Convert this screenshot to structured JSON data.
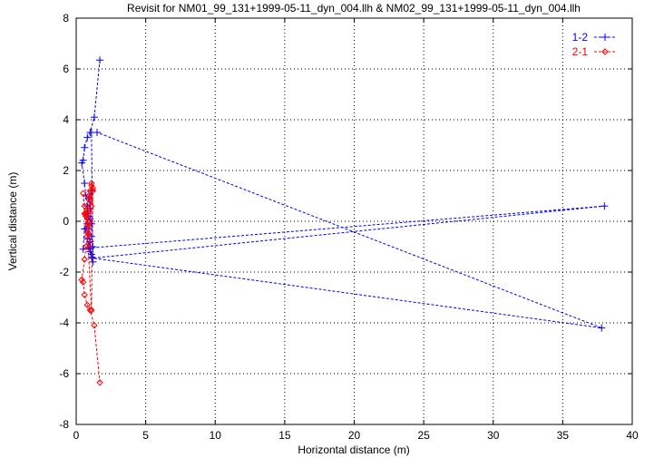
{
  "chart_data": {
    "type": "line",
    "title": "Revisit for NM01_99_131+1999-05-11_dyn_004.llh & NM02_99_131+1999-05-11_dyn_004.llh",
    "xlabel": "Horizontal distance (m)",
    "ylabel": "Vertical distance (m)",
    "xlim": [
      0,
      40
    ],
    "ylim": [
      -8,
      8
    ],
    "xticks": [
      "0",
      "5",
      "10",
      "15",
      "20",
      "25",
      "30",
      "35",
      "40"
    ],
    "yticks": [
      "-8",
      "-6",
      "-4",
      "-2",
      "0",
      "2",
      "4",
      "6",
      "8"
    ],
    "grid": true,
    "legend_position": "top-right",
    "series": [
      {
        "name": "1-2",
        "color": "#0000ff",
        "marker": "plus",
        "line_style": "dashed",
        "points": [
          [
            1.7,
            6.35
          ],
          [
            1.3,
            4.1
          ],
          [
            1.0,
            3.5
          ],
          [
            0.8,
            3.3
          ],
          [
            0.6,
            2.9
          ],
          [
            0.5,
            2.4
          ],
          [
            0.4,
            2.3
          ],
          [
            0.6,
            1.5
          ],
          [
            0.7,
            1.0
          ],
          [
            0.8,
            0.6
          ],
          [
            0.9,
            0.2
          ],
          [
            0.8,
            -0.1
          ],
          [
            0.7,
            -0.3
          ],
          [
            0.9,
            -0.5
          ],
          [
            1.0,
            -0.8
          ],
          [
            0.9,
            -1.0
          ],
          [
            1.0,
            -1.2
          ],
          [
            1.1,
            -1.4
          ],
          [
            1.2,
            -1.6
          ],
          [
            1.1,
            3.5
          ],
          [
            1.5,
            3.5
          ],
          [
            37.8,
            -4.2
          ],
          [
            1.2,
            -1.45
          ],
          [
            38.0,
            0.6
          ],
          [
            1.0,
            -1.05
          ],
          [
            0.5,
            -1.1
          ],
          [
            0.6,
            -0.3
          ],
          [
            0.8,
            0.3
          ],
          [
            0.9,
            0.9
          ],
          [
            1.1,
            1.2
          ],
          [
            1.0,
            0.5
          ],
          [
            1.1,
            -0.1
          ],
          [
            1.1,
            -0.6
          ],
          [
            1.2,
            -1.0
          ],
          [
            1.1,
            -1.3
          ],
          [
            1.0,
            -1.1
          ],
          [
            0.8,
            -0.7
          ],
          [
            0.9,
            -0.3
          ],
          [
            1.0,
            0.1
          ]
        ]
      },
      {
        "name": "2-1",
        "color": "#ff0000",
        "marker": "diamond",
        "line_style": "dashed",
        "points": [
          [
            1.7,
            -6.35
          ],
          [
            1.3,
            -4.1
          ],
          [
            1.0,
            -3.5
          ],
          [
            0.8,
            -3.3
          ],
          [
            0.6,
            -2.9
          ],
          [
            0.5,
            -2.4
          ],
          [
            0.4,
            -2.3
          ],
          [
            0.6,
            -1.5
          ],
          [
            0.7,
            -1.0
          ],
          [
            0.8,
            -0.6
          ],
          [
            0.9,
            -0.2
          ],
          [
            0.8,
            0.1
          ],
          [
            0.7,
            0.3
          ],
          [
            0.9,
            0.5
          ],
          [
            1.0,
            0.8
          ],
          [
            0.9,
            1.0
          ],
          [
            1.0,
            1.2
          ],
          [
            1.1,
            1.4
          ],
          [
            1.2,
            1.3
          ],
          [
            1.1,
            -3.5
          ],
          [
            0.8,
            -0.4
          ],
          [
            0.6,
            0.3
          ],
          [
            0.5,
            1.1
          ],
          [
            0.6,
            0.6
          ],
          [
            0.7,
            0.2
          ],
          [
            0.8,
            -0.1
          ],
          [
            0.9,
            0.4
          ],
          [
            1.0,
            0.9
          ],
          [
            1.1,
            1.5
          ],
          [
            1.2,
            1.2
          ],
          [
            1.1,
            0.6
          ],
          [
            1.0,
            0.0
          ],
          [
            0.9,
            -0.5
          ],
          [
            1.0,
            -0.9
          ]
        ]
      }
    ]
  }
}
